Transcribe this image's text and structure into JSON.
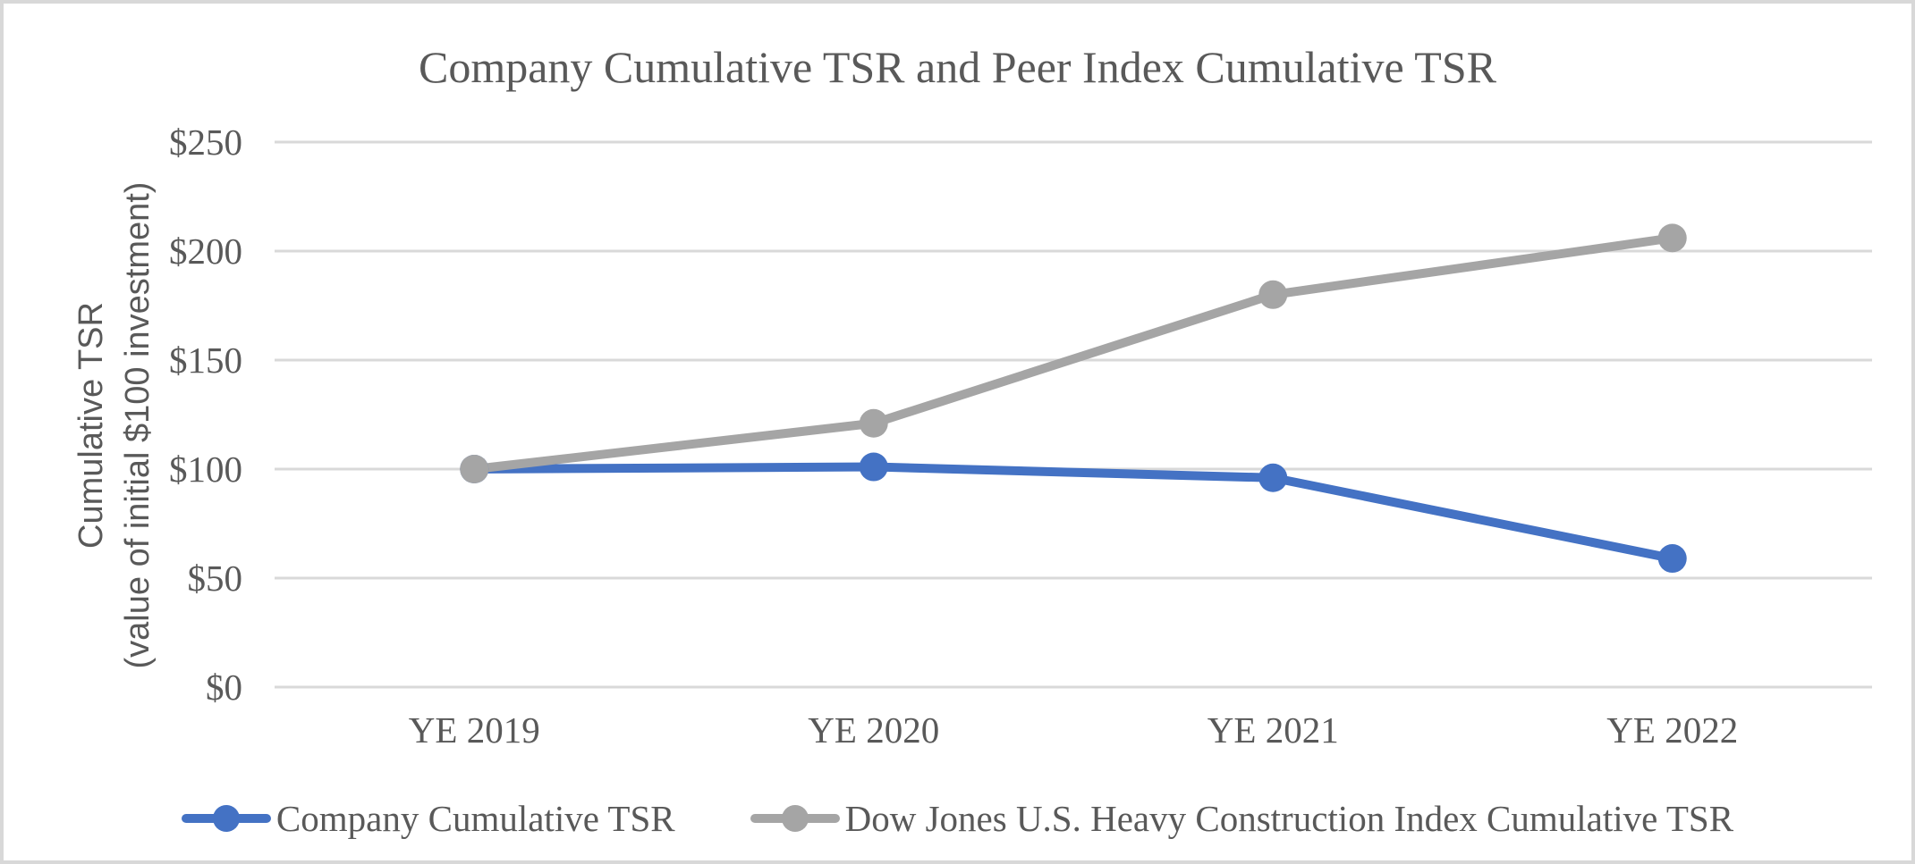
{
  "chart_data": {
    "type": "line",
    "title": "Company Cumulative TSR and Peer Index Cumulative TSR",
    "ylabel_line1": "Cumulative TSR",
    "ylabel_line2": "(value of initial $100 investment)",
    "categories": [
      "YE 2019",
      "YE 2020",
      "YE 2021",
      "YE 2022"
    ],
    "series": [
      {
        "key": "company",
        "name": "Company Cumulative TSR",
        "color": "#4472C4",
        "values": [
          100,
          101,
          96,
          59
        ]
      },
      {
        "key": "peer-index",
        "name": "Dow Jones U.S. Heavy Construction Index Cumulative TSR",
        "color": "#A5A5A5",
        "values": [
          100,
          121,
          180,
          206
        ]
      }
    ],
    "y_ticks": [
      {
        "value": 0,
        "label": "$0"
      },
      {
        "value": 50,
        "label": "$50"
      },
      {
        "value": 100,
        "label": "$100"
      },
      {
        "value": 150,
        "label": "$150"
      },
      {
        "value": 200,
        "label": "$200"
      },
      {
        "value": 250,
        "label": "$250"
      }
    ],
    "ylim": [
      0,
      250
    ],
    "grid": true,
    "legend_position": "bottom"
  },
  "colors": {
    "text": "#595959",
    "gridline": "#D9D9D9",
    "frame_border": "#D8D8D8",
    "company_series": "#4472C4",
    "peer_series": "#A5A5A5"
  }
}
